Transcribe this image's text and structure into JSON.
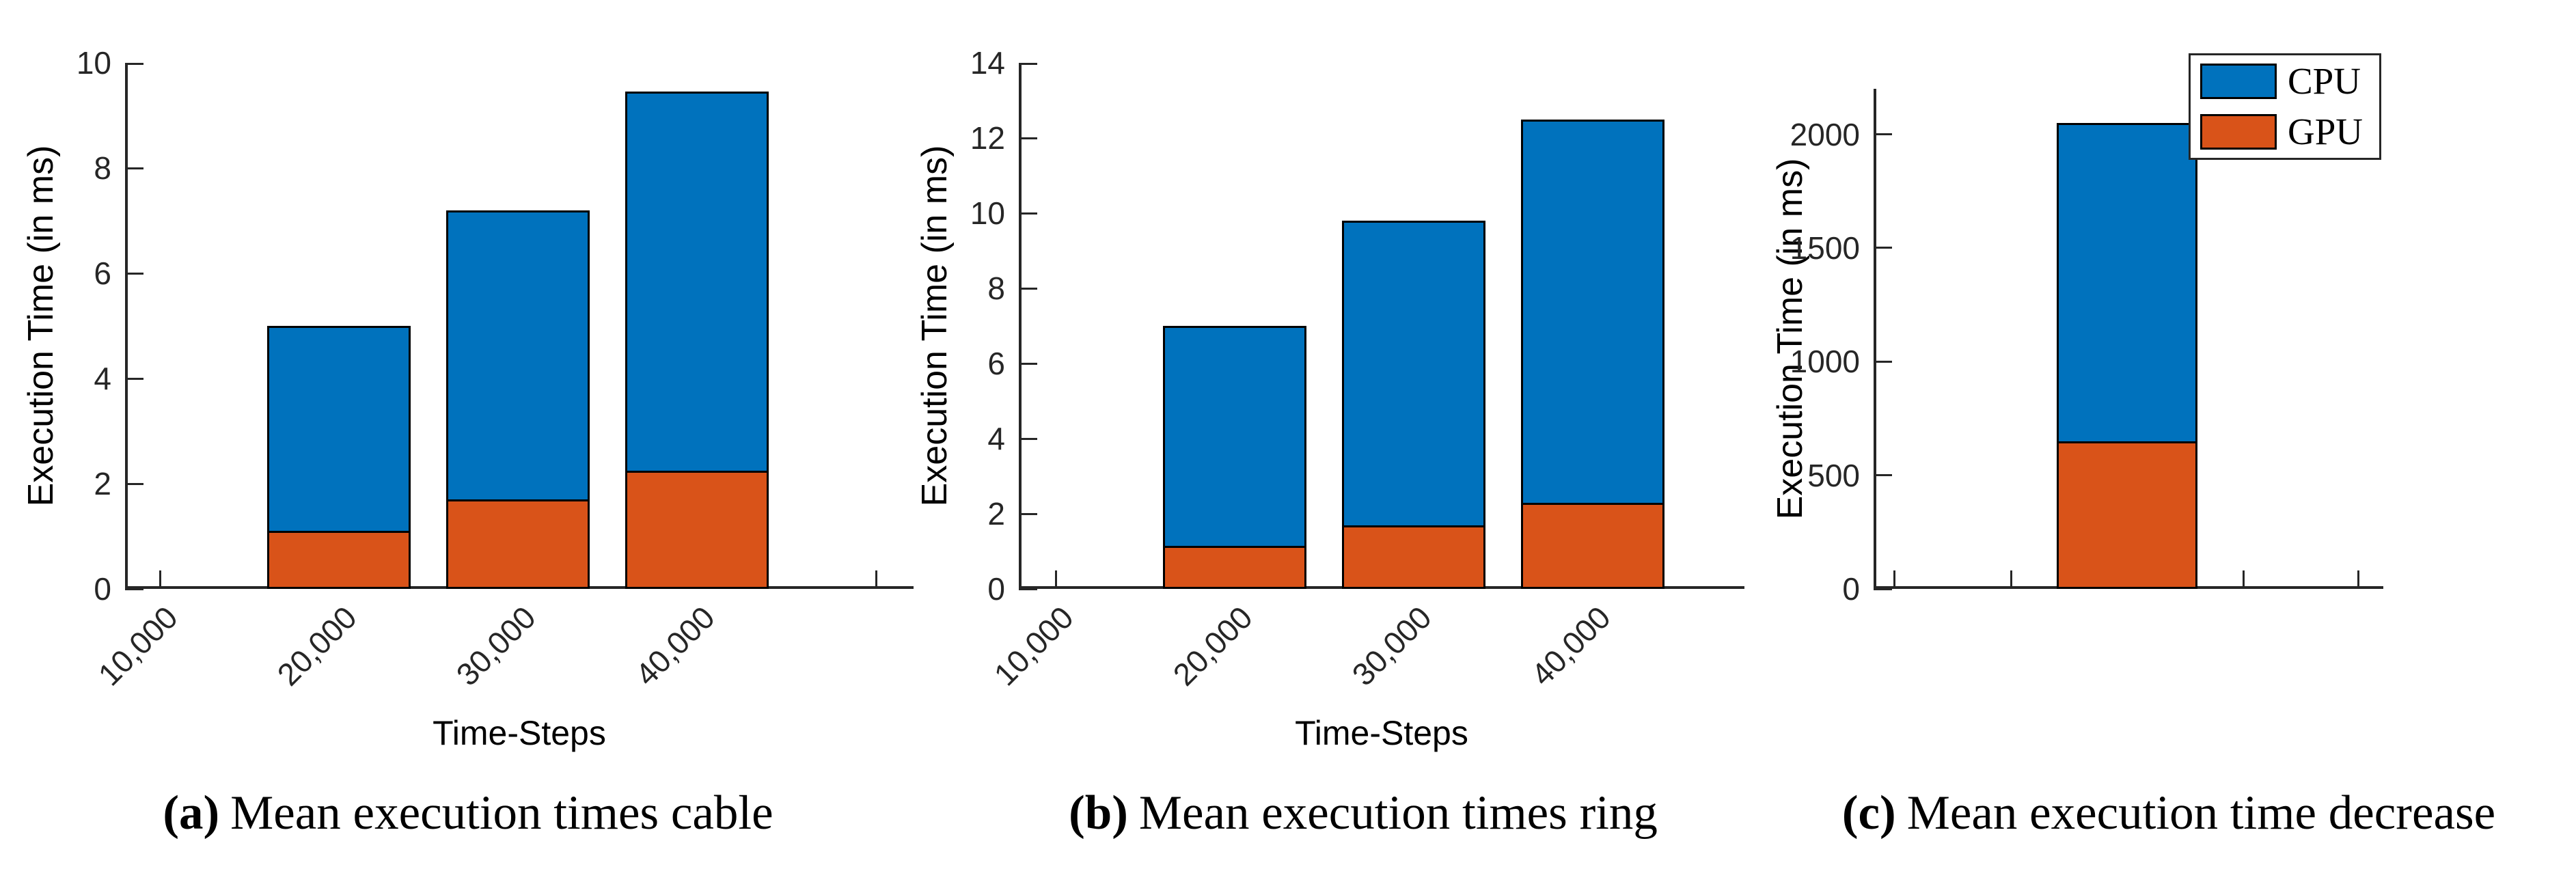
{
  "figure": {
    "background": "#ffffff",
    "colors": {
      "cpu": "#0072BD",
      "gpu": "#D95319",
      "axis": "#262626",
      "bar_edge": "#000000"
    },
    "legend": {
      "position": "top-right",
      "items": [
        {
          "label": "CPU",
          "color_key": "cpu"
        },
        {
          "label": "GPU",
          "color_key": "gpu"
        }
      ]
    },
    "captions": [
      {
        "label": "(a)",
        "text": "Mean execution times cable"
      },
      {
        "label": "(b)",
        "text": "Mean execution times ring"
      },
      {
        "label": "(c)",
        "text": "Mean execution time decrease"
      }
    ]
  },
  "chart_data": [
    {
      "id": "a",
      "type": "bar",
      "stacked": true,
      "title": "",
      "xlabel": "Time-Steps",
      "ylabel": "Execution Time (in ms)",
      "categories": [
        "10,000",
        "20,000",
        "30,000",
        "40,000"
      ],
      "series": [
        {
          "name": "GPU",
          "values": [
            0,
            1.1,
            1.7,
            2.25
          ]
        },
        {
          "name": "CPU",
          "values": [
            0,
            3.9,
            5.5,
            7.2
          ]
        }
      ],
      "stack_totals": [
        0,
        5.0,
        7.2,
        9.45
      ],
      "ylim": [
        0,
        10
      ],
      "yticks": [
        0,
        2,
        4,
        6,
        8,
        10
      ],
      "x_tick_label_rotation": 45,
      "extra_unlabeled_xticks": 1,
      "grid": false,
      "legend": false
    },
    {
      "id": "b",
      "type": "bar",
      "stacked": true,
      "title": "",
      "xlabel": "Time-Steps",
      "ylabel": "Execution Time (in ms)",
      "categories": [
        "10,000",
        "20,000",
        "30,000",
        "40,000"
      ],
      "series": [
        {
          "name": "GPU",
          "values": [
            0,
            1.15,
            1.7,
            2.3
          ]
        },
        {
          "name": "CPU",
          "values": [
            0,
            5.85,
            8.1,
            10.2
          ]
        }
      ],
      "stack_totals": [
        0,
        7.0,
        9.8,
        12.5
      ],
      "ylim": [
        0,
        14
      ],
      "yticks": [
        0,
        2,
        4,
        6,
        8,
        10,
        12,
        14
      ],
      "x_tick_label_rotation": 45,
      "extra_unlabeled_xticks": 0,
      "grid": false,
      "legend": false
    },
    {
      "id": "c",
      "type": "bar",
      "stacked": true,
      "title": "",
      "xlabel": "",
      "ylabel": "Execution Time (in ms)",
      "categories": [],
      "x_tick_count": 5,
      "bar_tick_index": 2,
      "series": [
        {
          "name": "GPU",
          "values": [
            650
          ]
        },
        {
          "name": "CPU",
          "values": [
            1400
          ]
        }
      ],
      "stack_totals": [
        2050
      ],
      "ylim": [
        0,
        2200
      ],
      "yticks": [
        0,
        500,
        1000,
        1500,
        2000
      ],
      "grid": false,
      "legend": true
    }
  ]
}
